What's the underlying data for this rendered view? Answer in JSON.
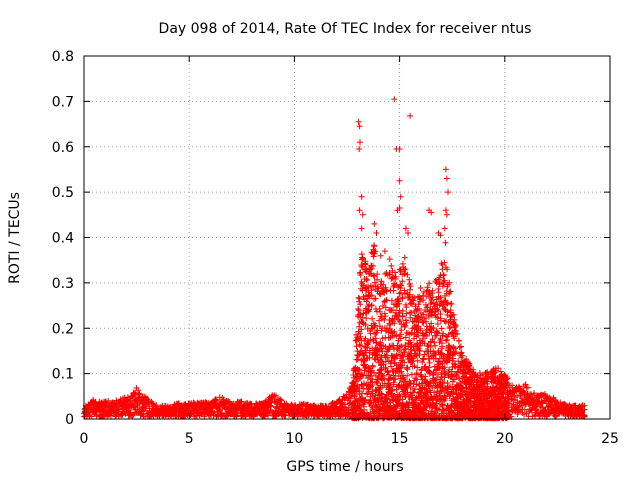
{
  "chart_data": {
    "type": "scatter",
    "title": "Day 098 of 2014, Rate Of TEC Index for receiver ntus",
    "xlabel": "GPS time / hours",
    "ylabel": "ROTI / TECUs",
    "xlim": [
      0,
      25
    ],
    "ylim": [
      0,
      0.8
    ],
    "xticks": [
      0,
      5,
      10,
      15,
      20,
      25
    ],
    "yticks": [
      0,
      0.1,
      0.2,
      0.3,
      0.4,
      0.5,
      0.6,
      0.7,
      0.8
    ],
    "xtick_labels": [
      "0",
      "5",
      "10",
      "15",
      "20",
      "25"
    ],
    "ytick_labels": [
      "0",
      "0.1",
      "0.2",
      "0.3",
      "0.4",
      "0.5",
      "0.6",
      "0.7",
      "0.8"
    ],
    "grid": true,
    "marker": "+",
    "color": "#ff0000",
    "envelope": [
      [
        0.0,
        0.025
      ],
      [
        0.5,
        0.045
      ],
      [
        1.0,
        0.04
      ],
      [
        1.5,
        0.04
      ],
      [
        2.0,
        0.05
      ],
      [
        2.5,
        0.07
      ],
      [
        3.0,
        0.045
      ],
      [
        3.5,
        0.03
      ],
      [
        4.0,
        0.03
      ],
      [
        4.5,
        0.035
      ],
      [
        5.0,
        0.035
      ],
      [
        5.5,
        0.04
      ],
      [
        6.0,
        0.035
      ],
      [
        6.5,
        0.055
      ],
      [
        7.0,
        0.035
      ],
      [
        7.5,
        0.04
      ],
      [
        8.0,
        0.035
      ],
      [
        8.5,
        0.035
      ],
      [
        9.0,
        0.06
      ],
      [
        9.5,
        0.035
      ],
      [
        10.0,
        0.03
      ],
      [
        10.5,
        0.035
      ],
      [
        11.0,
        0.03
      ],
      [
        11.5,
        0.03
      ],
      [
        12.0,
        0.04
      ],
      [
        12.5,
        0.055
      ],
      [
        12.8,
        0.1
      ],
      [
        13.0,
        0.25
      ],
      [
        13.2,
        0.38
      ],
      [
        13.5,
        0.33
      ],
      [
        13.8,
        0.4
      ],
      [
        14.0,
        0.3
      ],
      [
        14.3,
        0.33
      ],
      [
        14.6,
        0.36
      ],
      [
        14.9,
        0.3
      ],
      [
        15.2,
        0.38
      ],
      [
        15.5,
        0.3
      ],
      [
        15.8,
        0.26
      ],
      [
        16.0,
        0.29
      ],
      [
        16.3,
        0.3
      ],
      [
        16.6,
        0.3
      ],
      [
        16.9,
        0.33
      ],
      [
        17.2,
        0.4
      ],
      [
        17.5,
        0.25
      ],
      [
        17.8,
        0.18
      ],
      [
        18.0,
        0.15
      ],
      [
        18.5,
        0.11
      ],
      [
        19.0,
        0.1
      ],
      [
        19.5,
        0.12
      ],
      [
        20.0,
        0.1
      ],
      [
        20.5,
        0.07
      ],
      [
        21.0,
        0.08
      ],
      [
        21.5,
        0.05
      ],
      [
        22.0,
        0.06
      ],
      [
        22.5,
        0.04
      ],
      [
        23.0,
        0.03
      ],
      [
        23.5,
        0.03
      ],
      [
        23.8,
        0.03
      ]
    ],
    "outliers": [
      [
        13.05,
        0.655
      ],
      [
        13.1,
        0.645
      ],
      [
        13.12,
        0.61
      ],
      [
        13.08,
        0.595
      ],
      [
        14.75,
        0.705
      ],
      [
        14.85,
        0.595
      ],
      [
        15.0,
        0.595
      ],
      [
        15.5,
        0.668
      ],
      [
        13.2,
        0.49
      ],
      [
        13.1,
        0.46
      ],
      [
        13.25,
        0.45
      ],
      [
        13.2,
        0.42
      ],
      [
        15.0,
        0.525
      ],
      [
        15.05,
        0.49
      ],
      [
        15.0,
        0.465
      ],
      [
        14.9,
        0.46
      ],
      [
        17.2,
        0.55
      ],
      [
        17.25,
        0.53
      ],
      [
        17.3,
        0.5
      ],
      [
        17.2,
        0.46
      ],
      [
        16.4,
        0.46
      ],
      [
        16.5,
        0.455
      ],
      [
        17.15,
        0.42
      ],
      [
        17.25,
        0.45
      ],
      [
        13.8,
        0.43
      ],
      [
        13.9,
        0.41
      ],
      [
        14.1,
        0.36
      ],
      [
        14.3,
        0.37
      ],
      [
        15.3,
        0.42
      ],
      [
        15.4,
        0.41
      ],
      [
        16.85,
        0.41
      ],
      [
        16.95,
        0.405
      ]
    ]
  }
}
